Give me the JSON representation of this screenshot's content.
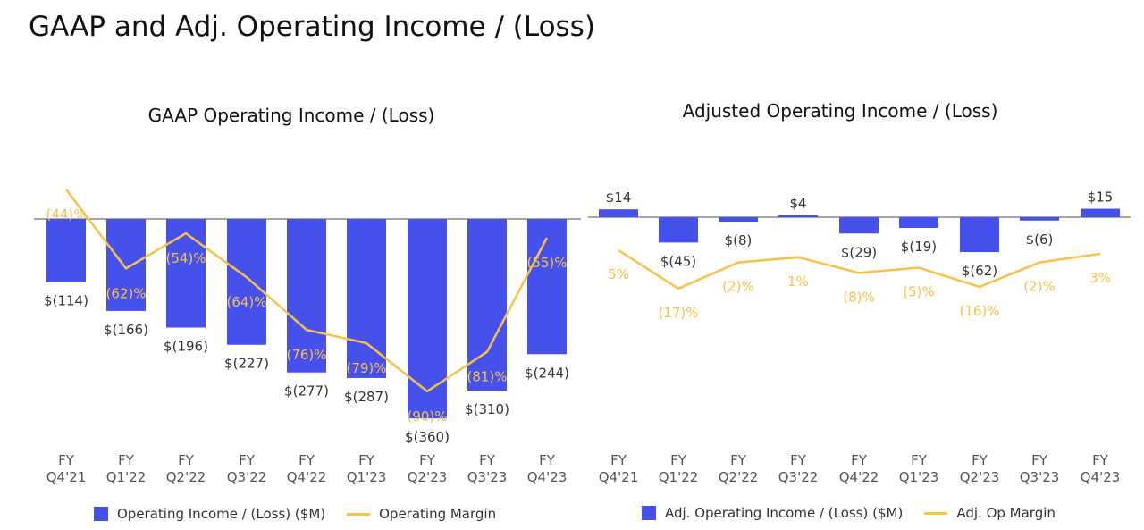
{
  "title": "GAAP and Adj. Operating Income / (Loss)",
  "colors": {
    "bar": "#4650EA",
    "line": "#F7C24A",
    "text": "#333333"
  },
  "chart_data": [
    {
      "type": "bar+line",
      "title": "GAAP Operating Income / (Loss)",
      "categories": [
        [
          "FY",
          "Q4'21"
        ],
        [
          "FY",
          "Q1'22"
        ],
        [
          "FY",
          "Q2'22"
        ],
        [
          "FY",
          "Q3'22"
        ],
        [
          "FY",
          "Q4'22"
        ],
        [
          "FY",
          "Q1'23"
        ],
        [
          "FY",
          "Q2'23"
        ],
        [
          "FY",
          "Q3'23"
        ],
        [
          "FY",
          "Q4'23"
        ]
      ],
      "series": [
        {
          "name": "Operating Income / (Loss) ($M)",
          "type": "bar",
          "values": [
            -114,
            -166,
            -196,
            -227,
            -277,
            -287,
            -360,
            -310,
            -244
          ],
          "labels": [
            "$(114)",
            "$(166)",
            "$(196)",
            "$(227)",
            "$(277)",
            "$(287)",
            "$(360)",
            "$(310)",
            "$(244)"
          ]
        },
        {
          "name": "Operating Margin",
          "type": "line",
          "values": [
            -44,
            -62,
            -54,
            -64,
            -76,
            -79,
            -90,
            -81,
            -55
          ],
          "labels": [
            "(44)%",
            "(62)%",
            "(54)%",
            "(64)%",
            "(76)%",
            "(79)%",
            "(90)%",
            "(81)%",
            "(55)%"
          ]
        }
      ],
      "legend": "bottom"
    },
    {
      "type": "bar+line",
      "title": "Adjusted Operating Income / (Loss)",
      "categories": [
        [
          "FY",
          "Q4'21"
        ],
        [
          "FY",
          "Q1'22"
        ],
        [
          "FY",
          "Q2'22"
        ],
        [
          "FY",
          "Q3'22"
        ],
        [
          "FY",
          "Q4'22"
        ],
        [
          "FY",
          "Q1'23"
        ],
        [
          "FY",
          "Q2'23"
        ],
        [
          "FY",
          "Q3'23"
        ],
        [
          "FY",
          "Q4'23"
        ]
      ],
      "series": [
        {
          "name": "Adj. Operating Income / (Loss) ($M)",
          "type": "bar",
          "values": [
            14,
            -45,
            -8,
            4,
            -29,
            -19,
            -62,
            -6,
            15
          ],
          "labels": [
            "$14",
            "$(45)",
            "$(8)",
            "$4",
            "$(29)",
            "$(19)",
            "$(62)",
            "$(6)",
            "$15"
          ]
        },
        {
          "name": "Adj. Op Margin",
          "type": "line",
          "values": [
            5,
            -17,
            -2,
            1,
            -8,
            -5,
            -16,
            -2,
            3
          ],
          "labels": [
            "5%",
            "(17)%",
            "(2)%",
            "1%",
            "(8)%",
            "(5)%",
            "(16)%",
            "(2)%",
            "3%"
          ]
        }
      ],
      "legend": "bottom"
    }
  ]
}
